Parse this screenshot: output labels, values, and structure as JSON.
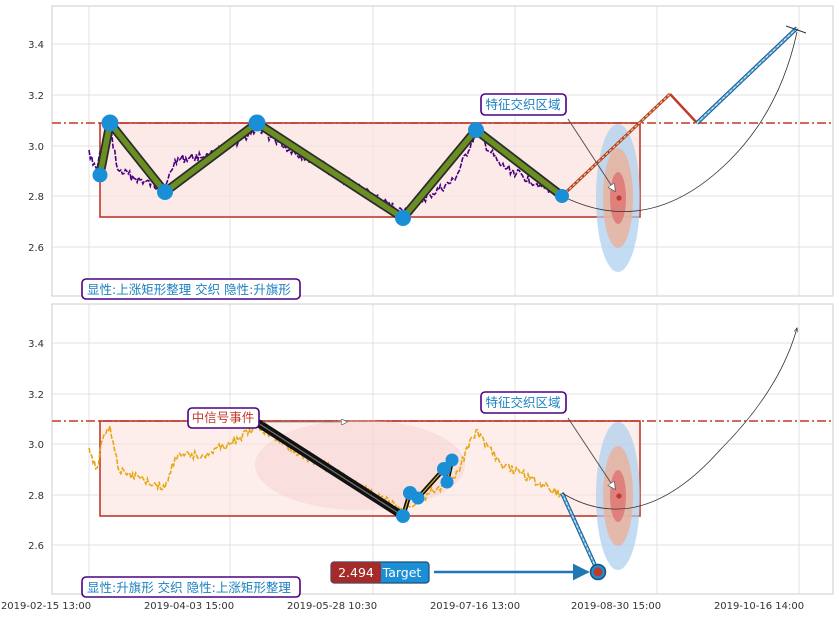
{
  "chart_data": [
    {
      "type": "line",
      "panel": "top",
      "yticks": [
        2.6,
        2.8,
        3.0,
        3.2,
        3.4
      ],
      "ylim": [
        2.43,
        3.55
      ],
      "grid": true,
      "price_series_color": "#4b0082",
      "pattern_color": "#6b8e23",
      "rect_color": "#c0392b",
      "rect_range": {
        "x": [
          "2019-02-20",
          "2019-09-05"
        ],
        "y": [
          2.72,
          3.09
        ]
      },
      "dashdot_level": 3.09,
      "zigzag": [
        {
          "x": "2019-02-20",
          "y": 2.89
        },
        {
          "x": "2019-02-22",
          "y": 3.09
        },
        {
          "x": "2019-03-14",
          "y": 2.82
        },
        {
          "x": "2019-04-15",
          "y": 3.09
        },
        {
          "x": "2019-06-20",
          "y": 2.72
        },
        {
          "x": "2019-07-15",
          "y": 3.06
        },
        {
          "x": "2019-08-19",
          "y": 2.8
        }
      ],
      "projection": [
        {
          "x": "2019-08-19",
          "y": 2.8
        },
        {
          "x": "2019-09-20",
          "y": 3.21
        },
        {
          "x": "2019-09-29",
          "y": 3.09
        },
        {
          "x": "2019-10-23",
          "y": 3.47
        }
      ],
      "ellipse_center": {
        "x": "2019-08-31",
        "y": 2.79
      },
      "callout": "特征交织区域",
      "caption": "显性:上涨矩形整理 交织 隐性:升旗形"
    },
    {
      "type": "line",
      "panel": "bottom",
      "yticks": [
        2.6,
        2.8,
        3.0,
        3.2,
        3.4
      ],
      "ylim": [
        2.43,
        3.55
      ],
      "grid": true,
      "price_series_color": "#e6a817",
      "rect_range": {
        "x": [
          "2019-02-20",
          "2019-09-05"
        ],
        "y": [
          2.72,
          3.09
        ]
      },
      "dashdot_level": 3.09,
      "flag_points": [
        {
          "x": "2019-06-20",
          "y": 2.72
        },
        {
          "x": "2019-06-21",
          "y": 2.81
        },
        {
          "x": "2019-06-22",
          "y": 2.79
        },
        {
          "x": "2019-06-29",
          "y": 2.9
        },
        {
          "x": "2019-06-30",
          "y": 2.85
        },
        {
          "x": "2019-07-01",
          "y": 2.94
        }
      ],
      "event_label": "中信号事件",
      "callout": "特征交织区域",
      "target_value": "2.494",
      "target_label": "Target",
      "target_point": {
        "x": "2019-08-30",
        "y": 2.49
      },
      "caption": "显性:升旗形 交织 隐性:上涨矩形整理"
    }
  ],
  "xticks": [
    "2019-02-15 13:00",
    "2019-04-03 15:00",
    "2019-05-28 10:30",
    "2019-07-16 13:00",
    "2019-08-30 15:00",
    "2019-10-16 14:00"
  ]
}
